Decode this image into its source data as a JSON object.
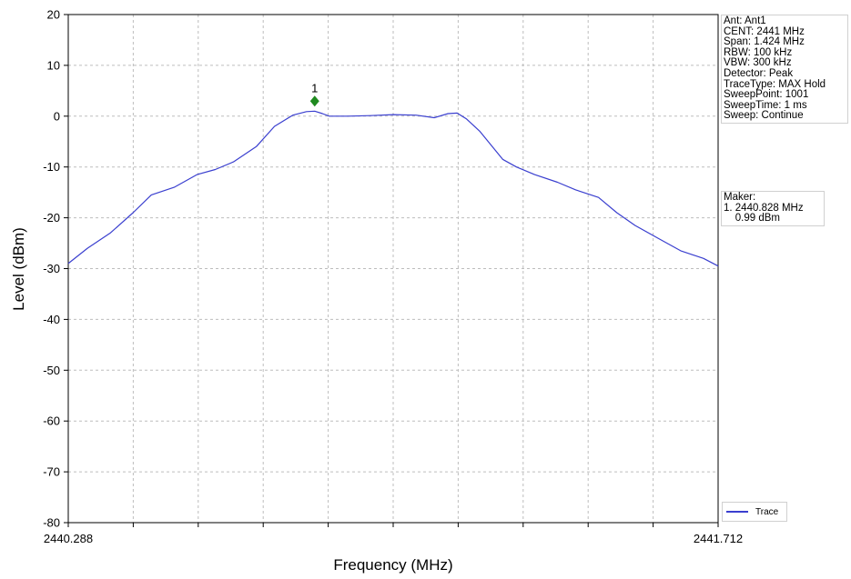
{
  "chart_data": {
    "type": "line",
    "title": "",
    "xlabel": "Frequency (MHz)",
    "ylabel": "Level (dBm)",
    "xlim": [
      2440.288,
      2441.712
    ],
    "ylim": [
      -80,
      20
    ],
    "yticks": [
      20,
      10,
      0,
      -10,
      -20,
      -30,
      -40,
      -50,
      -60,
      -70,
      -80
    ],
    "x_tick_labels": [
      "2440.288",
      "2441.712"
    ],
    "grid": true,
    "legend_position": "bottom-right",
    "series": [
      {
        "name": "Trace",
        "color": "#3a3fcf",
        "x": [
          2440.288,
          2440.33,
          2440.38,
          2440.43,
          2440.47,
          2440.52,
          2440.57,
          2440.61,
          2440.65,
          2440.7,
          2440.74,
          2440.78,
          2440.81,
          2440.828,
          2440.845,
          2440.86,
          2440.9,
          2440.95,
          2441.0,
          2441.05,
          2441.09,
          2441.12,
          2441.14,
          2441.16,
          2441.19,
          2441.24,
          2441.27,
          2441.31,
          2441.36,
          2441.4,
          2441.45,
          2441.49,
          2441.53,
          2441.58,
          2441.63,
          2441.68,
          2441.712
        ],
        "y": [
          -29,
          -26,
          -23,
          -19,
          -15.5,
          -14,
          -11.5,
          -10.5,
          -9,
          -6,
          -2,
          0.2,
          0.9,
          0.99,
          0.5,
          0,
          0,
          0.1,
          0.3,
          0.2,
          -0.3,
          0.5,
          0.6,
          -0.5,
          -3,
          -8.5,
          -10,
          -11.5,
          -13,
          -14.5,
          -16,
          -19,
          -21.5,
          -24,
          -26.5,
          -28,
          -29.5
        ]
      }
    ],
    "marker": {
      "label": "1",
      "x": 2440.828,
      "y": 0.99,
      "color": "#1f8a1f"
    }
  },
  "info": {
    "lines": [
      "Ant: Ant1",
      "CENT: 2441 MHz",
      "Span: 1.424 MHz",
      "RBW: 100 kHz",
      "VBW: 300 kHz",
      "Detector: Peak",
      "TraceType: MAX Hold",
      "SweepPoint: 1001",
      "SweepTime: 1 ms",
      "Sweep: Continue"
    ]
  },
  "marker_info": {
    "title": "Maker:",
    "line1": "1. 2440.828 MHz",
    "line2": "    0.99 dBm"
  },
  "legend": {
    "label": "Trace"
  }
}
